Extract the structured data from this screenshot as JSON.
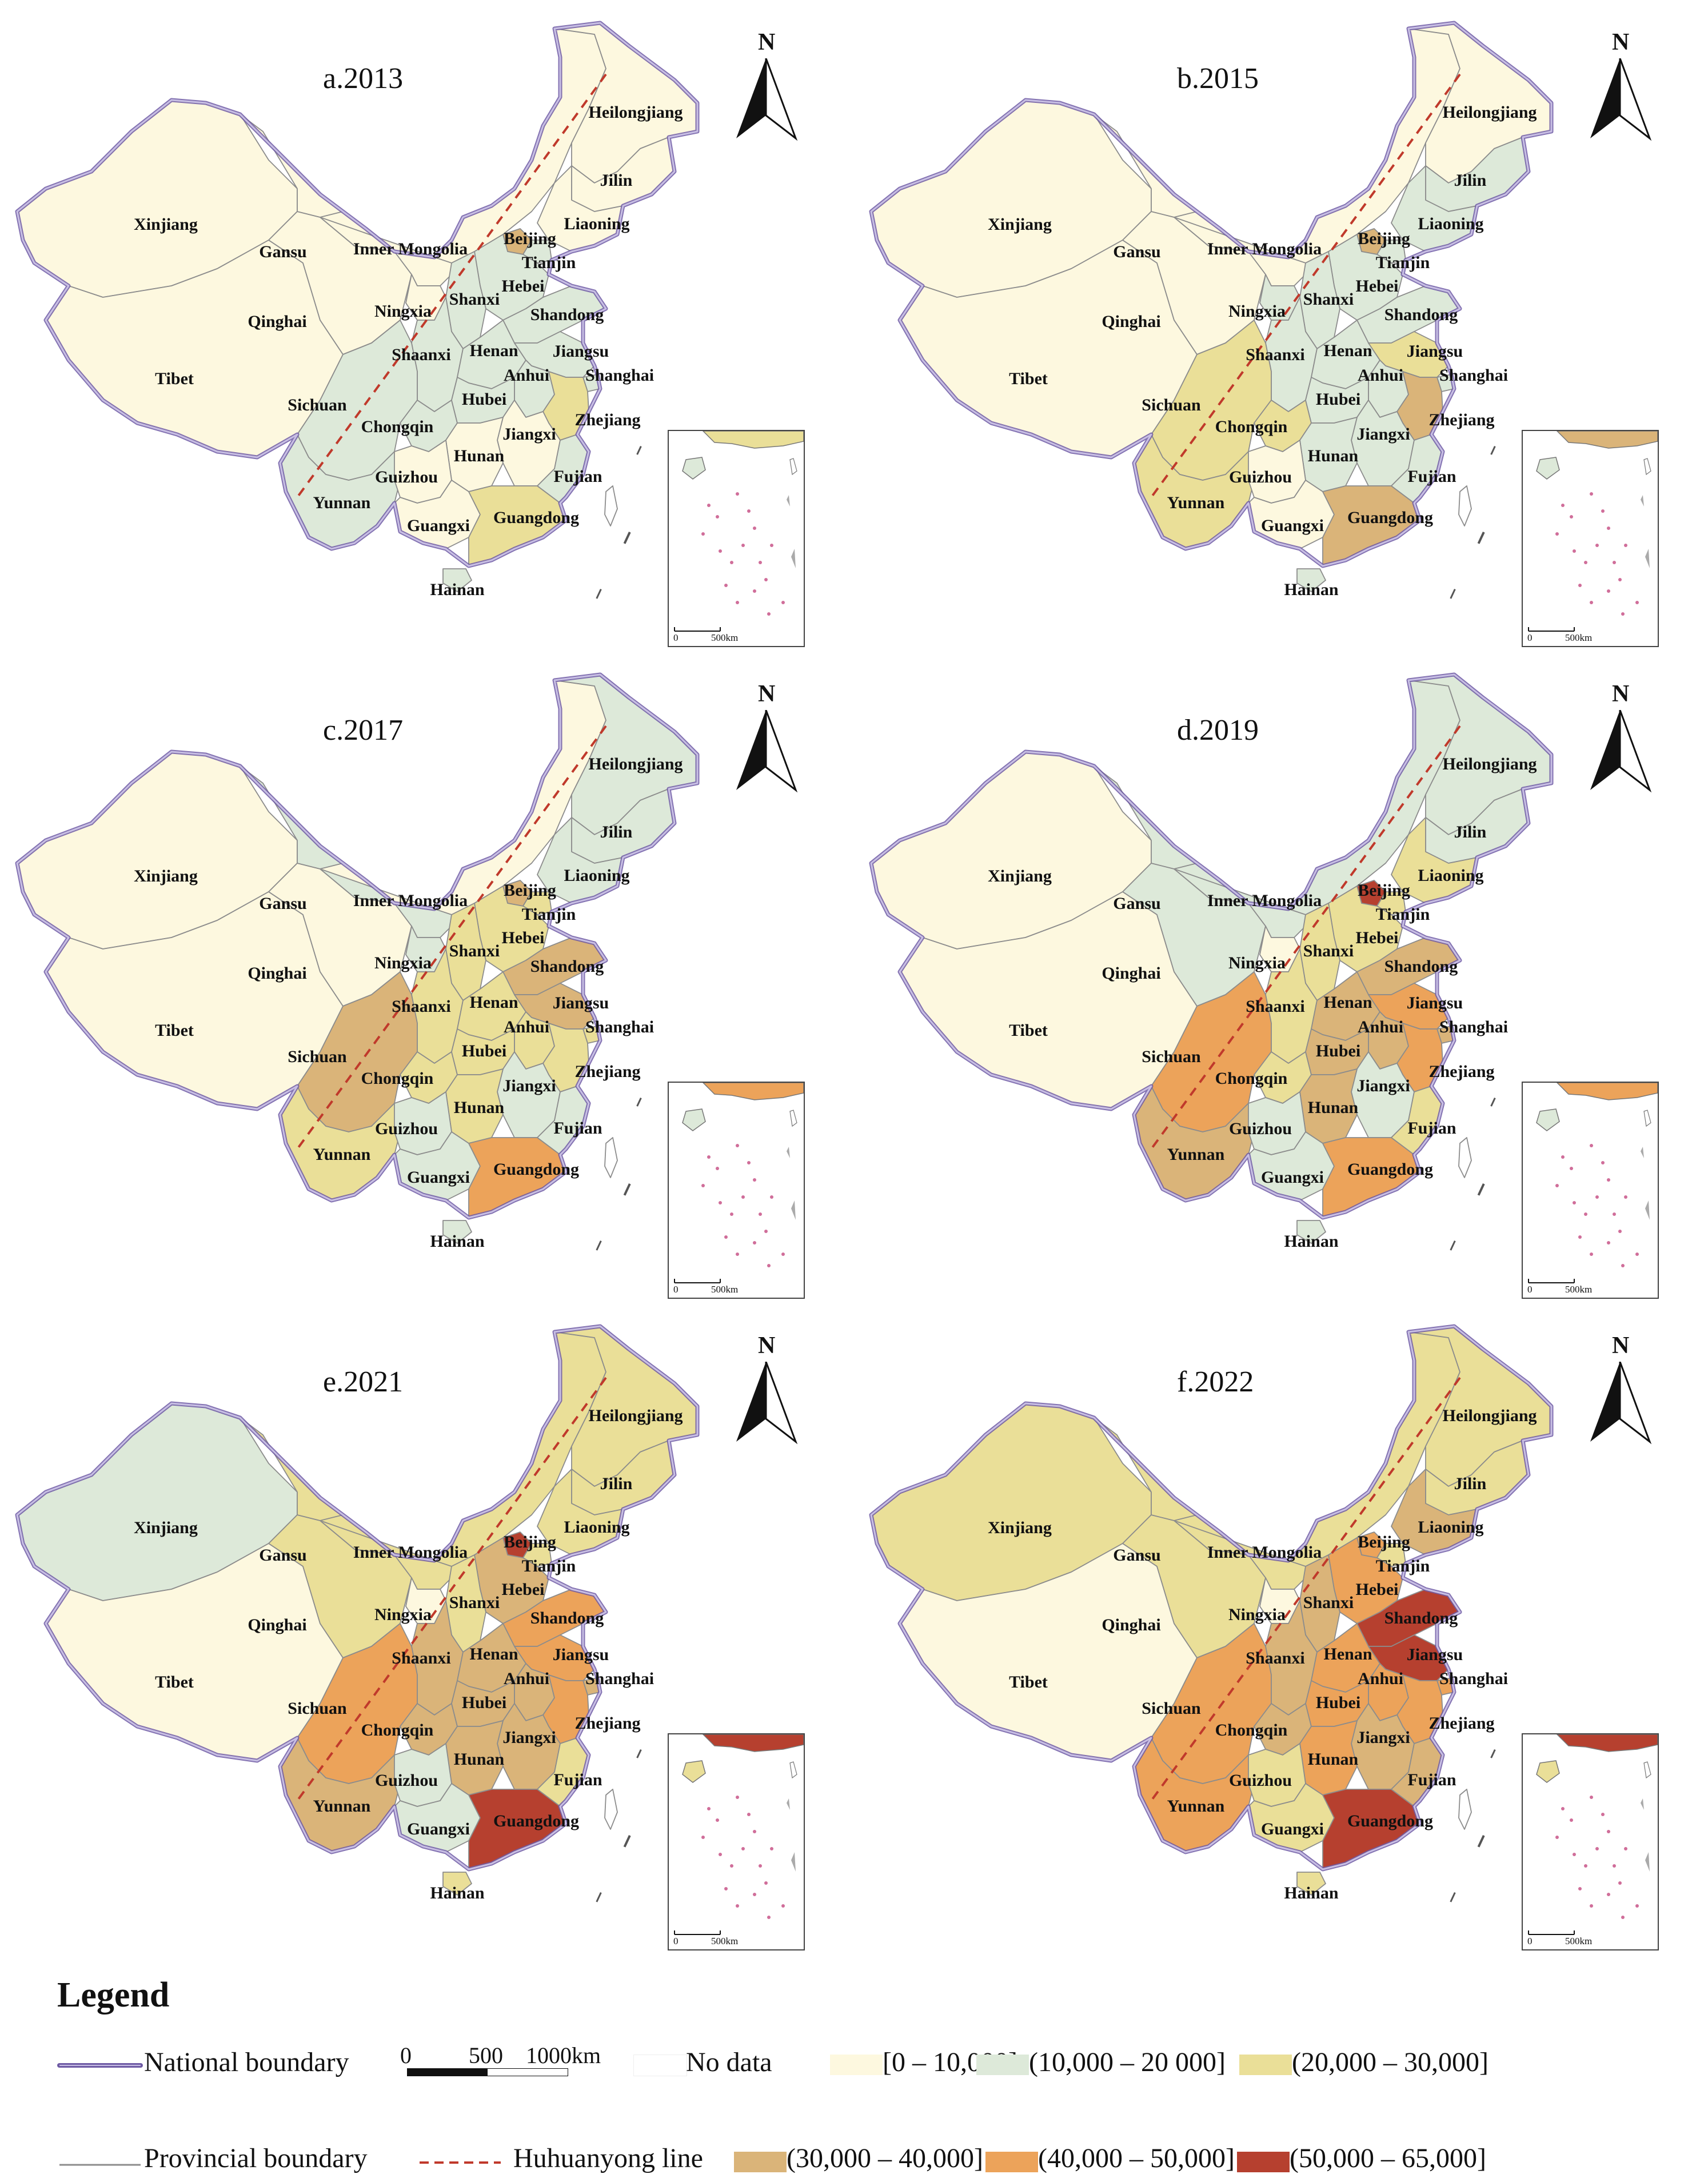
{
  "panels": [
    {
      "title": "a.2013"
    },
    {
      "title": "b.2015"
    },
    {
      "title": "c.2017"
    },
    {
      "title": "d.2019"
    },
    {
      "title": "e.2021"
    },
    {
      "title": "f.2022"
    }
  ],
  "north_label": "N",
  "inset_scale": {
    "zero": "0",
    "distance": "500km"
  },
  "colors": {
    "no_data": "#ffffff",
    "c1": "#fdf8df",
    "c2": "#dde9d9",
    "c3": "#eadf98",
    "c4": "#dab479",
    "c5": "#eca35a",
    "c6": "#b6402f",
    "national_boundary": "#6e5aa4",
    "provincial_boundary": "#8c8c8c",
    "huhuanyong_line": "#c0392b"
  },
  "provinces": [
    {
      "key": "xinjiang",
      "label": "Xinjiang",
      "classes": [
        "c1",
        "c1",
        "c1",
        "c1",
        "c2",
        "c3"
      ]
    },
    {
      "key": "tibet",
      "label": "Tibet",
      "classes": [
        "c1",
        "c1",
        "c1",
        "c1",
        "c1",
        "c1"
      ]
    },
    {
      "key": "qinghai",
      "label": "Qinghai",
      "classes": [
        "c1",
        "c1",
        "c1",
        "c2",
        "c3",
        "c3"
      ]
    },
    {
      "key": "gansu",
      "label": "Gansu",
      "classes": [
        "c1",
        "c1",
        "c2",
        "c2",
        "c3",
        "c3"
      ]
    },
    {
      "key": "innermongolia",
      "label": "Inner Mongolia",
      "classes": [
        "c1",
        "c1",
        "c1",
        "c2",
        "c3",
        "c3"
      ]
    },
    {
      "key": "heilongjiang",
      "label": "Heilongjiang",
      "classes": [
        "c1",
        "c1",
        "c2",
        "c2",
        "c3",
        "c3"
      ]
    },
    {
      "key": "jilin",
      "label": "Jilin",
      "classes": [
        "c1",
        "c2",
        "c2",
        "c2",
        "c3",
        "c3"
      ]
    },
    {
      "key": "liaoning",
      "label": "Liaoning",
      "classes": [
        "c1",
        "c2",
        "c2",
        "c3",
        "c3",
        "c4"
      ]
    },
    {
      "key": "beijing",
      "label": "Beijing",
      "classes": [
        "c4",
        "c4",
        "c4",
        "c6",
        "c6",
        "c5"
      ]
    },
    {
      "key": "tianjin",
      "label": "Tianjin",
      "classes": [
        "c2",
        "c2",
        "c3",
        "c3",
        "c3",
        "c3"
      ]
    },
    {
      "key": "hebei",
      "label": "Hebei",
      "classes": [
        "c2",
        "c2",
        "c3",
        "c3",
        "c4",
        "c5"
      ]
    },
    {
      "key": "shanxi",
      "label": "Shanxi",
      "classes": [
        "c2",
        "c2",
        "c3",
        "c3",
        "c3",
        "c4"
      ]
    },
    {
      "key": "shandong",
      "label": "Shandong",
      "classes": [
        "c2",
        "c2",
        "c4",
        "c4",
        "c5",
        "c6"
      ]
    },
    {
      "key": "ningxia",
      "label": "Ningxia",
      "classes": [
        "c1",
        "c2",
        "c2",
        "c1",
        "c1",
        "c1"
      ]
    },
    {
      "key": "shaanxi",
      "label": "Shaanxi",
      "classes": [
        "c2",
        "c2",
        "c3",
        "c3",
        "c4",
        "c4"
      ]
    },
    {
      "key": "henan",
      "label": "Henan",
      "classes": [
        "c2",
        "c2",
        "c3",
        "c4",
        "c4",
        "c5"
      ]
    },
    {
      "key": "jiangsu",
      "label": "Jiangsu",
      "classes": [
        "c2",
        "c3",
        "c4",
        "c5",
        "c5",
        "c6"
      ]
    },
    {
      "key": "anhui",
      "label": "Anhui",
      "classes": [
        "c2",
        "c2",
        "c3",
        "c4",
        "c4",
        "c5"
      ]
    },
    {
      "key": "shanghai",
      "label": "Shanghai",
      "classes": [
        "c2",
        "c2",
        "c3",
        "c4",
        "c4",
        "c5"
      ]
    },
    {
      "key": "sichuan",
      "label": "Sichuan",
      "classes": [
        "c2",
        "c3",
        "c4",
        "c5",
        "c5",
        "c5"
      ]
    },
    {
      "key": "chongqing",
      "label": "Chongqin",
      "classes": [
        "c2",
        "c3",
        "c3",
        "c3",
        "c4",
        "c4"
      ]
    },
    {
      "key": "hubei",
      "label": "Hubei",
      "classes": [
        "c2",
        "c2",
        "c3",
        "c4",
        "c4",
        "c5"
      ]
    },
    {
      "key": "zhejiang",
      "label": "Zhejiang",
      "classes": [
        "c3",
        "c4",
        "c3",
        "c5",
        "c5",
        "c5"
      ]
    },
    {
      "key": "jiangxi",
      "label": "Jiangxi",
      "classes": [
        "c1",
        "c2",
        "c2",
        "c2",
        "c4",
        "c4"
      ]
    },
    {
      "key": "hunan",
      "label": "Hunan",
      "classes": [
        "c1",
        "c2",
        "c3",
        "c4",
        "c4",
        "c5"
      ]
    },
    {
      "key": "yunnan",
      "label": "Yunnan",
      "classes": [
        "c2",
        "c3",
        "c3",
        "c4",
        "c4",
        "c5"
      ]
    },
    {
      "key": "guizhou",
      "label": "Guizhou",
      "classes": [
        "c1",
        "c1",
        "c2",
        "c2",
        "c2",
        "c3"
      ]
    },
    {
      "key": "guangxi",
      "label": "Guangxi",
      "classes": [
        "c1",
        "c1",
        "c2",
        "c2",
        "c2",
        "c3"
      ]
    },
    {
      "key": "guangdong",
      "label": "Guangdong",
      "classes": [
        "c3",
        "c4",
        "c5",
        "c5",
        "c6",
        "c6"
      ]
    },
    {
      "key": "fujian",
      "label": "Fujian",
      "classes": [
        "c2",
        "c2",
        "c2",
        "c3",
        "c3",
        "c4"
      ]
    },
    {
      "key": "hainan",
      "label": "Hainan",
      "classes": [
        "c2",
        "c2",
        "c2",
        "c2",
        "c3",
        "c3"
      ]
    },
    {
      "key": "taiwan",
      "label": "",
      "classes": [
        "no_data",
        "no_data",
        "no_data",
        "no_data",
        "no_data",
        "no_data"
      ]
    }
  ],
  "legend": {
    "title": "Legend",
    "national_boundary": "National boundary",
    "provincial_boundary": "Provincial boundary",
    "huhuanyong_line": "Huhuanyong line",
    "scale_bar": {
      "zero": "0",
      "mid": "500",
      "end": "1000km"
    },
    "classes": [
      {
        "key": "no_data",
        "label": "No data"
      },
      {
        "key": "c1",
        "label": "[0 – 10,000]"
      },
      {
        "key": "c2",
        "label": "(10,000 – 20 000]"
      },
      {
        "key": "c3",
        "label": "(20,000 – 30,000]"
      },
      {
        "key": "c4",
        "label": "(30,000 – 40,000]"
      },
      {
        "key": "c5",
        "label": "(40,000 – 50,000]"
      },
      {
        "key": "c6",
        "label": "(50,000 – 65,000]"
      }
    ]
  }
}
